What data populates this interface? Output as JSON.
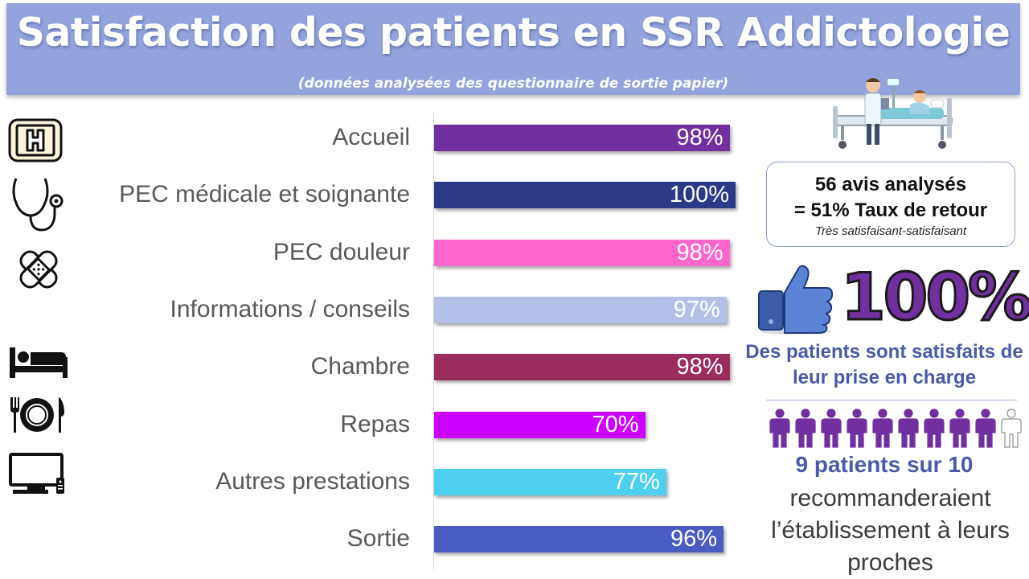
{
  "header": {
    "title": "Satisfaction des patients en SSR Addictologie",
    "subtitle": "(données analysées des questionnaire de sortie papier)"
  },
  "chart_data": {
    "type": "bar",
    "orientation": "horizontal",
    "title": "",
    "categories": [
      "Accueil",
      "PEC médicale et soignante",
      "PEC douleur",
      "Informations / conseils",
      "Chambre",
      "Repas",
      "Autres prestations",
      "Sortie"
    ],
    "values": [
      98,
      100,
      98,
      97,
      98,
      70,
      77,
      96
    ],
    "value_labels": [
      "98%",
      "100%",
      "98%",
      "97%",
      "98%",
      "70%",
      "77%",
      "96%"
    ],
    "colors": [
      "#7030a0",
      "#2b3a86",
      "#ff66cc",
      "#b4c0e8",
      "#9b2c5e",
      "#cc00ff",
      "#4dd0f0",
      "#4a5cc2"
    ],
    "xlim": [
      0,
      100
    ],
    "grid": false
  },
  "icons": [
    "hospital-sign-icon",
    "stethoscope-icon",
    "bandage-icon",
    "",
    "bed-icon",
    "plate-cutlery-icon",
    "television-icon",
    ""
  ],
  "stats": {
    "line1": "56 avis analysés",
    "line2": "= 51% Taux de retour",
    "line3": "Très satisfaisant-satisfaisant"
  },
  "satisfaction": {
    "percent": "100%",
    "text": "Des patients sont satisfaits de leur prise en charge"
  },
  "recommendation": {
    "count_text": "9 patients sur 10",
    "text": "recommanderaient l’établissement à leurs proches",
    "filled": 9,
    "total": 10
  },
  "colors": {
    "header_bg": "#94a3dd",
    "accent_blue": "#4a5aa8",
    "accent_purple": "#7030a0"
  }
}
